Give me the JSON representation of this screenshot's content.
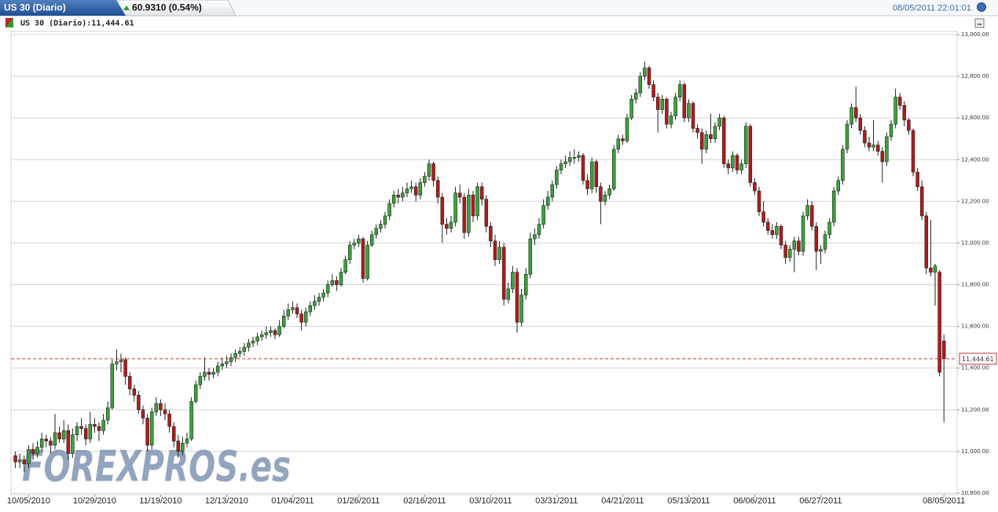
{
  "chart_data": {
    "type": "candlestick",
    "title": "US 30 (Diario)",
    "change": "60.9310 (0.54%)",
    "timestamp": "08/05/2011 22:01:01",
    "legend_label": "US 30 (Diario):11,444.61",
    "watermark": "FOREXPROS.es",
    "last_price": {
      "value": 11444.61,
      "label": "11,444.61"
    },
    "up_color": "#3aa33a",
    "down_color": "#b01c1c",
    "grid": true,
    "ylim": [
      10800,
      13000
    ],
    "yticks": [
      {
        "value": 10800,
        "label": "10,800.00"
      },
      {
        "value": 11000,
        "label": "11,000.00"
      },
      {
        "value": 11200,
        "label": "11,200.00"
      },
      {
        "value": 11400,
        "label": "11,400.00"
      },
      {
        "value": 11600,
        "label": "11,600.00"
      },
      {
        "value": 11800,
        "label": "11,800.00"
      },
      {
        "value": 12000,
        "label": "12,000.00"
      },
      {
        "value": 12200,
        "label": "12,200.00"
      },
      {
        "value": 12400,
        "label": "12,400.00"
      },
      {
        "value": 12600,
        "label": "12,600.00"
      },
      {
        "value": 12800,
        "label": "12,800.00"
      },
      {
        "value": 13000,
        "label": "13,000.00"
      }
    ],
    "xlim": [
      -1,
      214
    ],
    "xticks": [
      {
        "value": 3,
        "label": "10/05/2010"
      },
      {
        "value": 18,
        "label": "10/29/2010"
      },
      {
        "value": 33,
        "label": "11/19/2010"
      },
      {
        "value": 48,
        "label": "12/13/2010"
      },
      {
        "value": 63,
        "label": "01/04/2011"
      },
      {
        "value": 78,
        "label": "01/26/2011"
      },
      {
        "value": 93,
        "label": "02/16/2011"
      },
      {
        "value": 108,
        "label": "03/10/2011"
      },
      {
        "value": 123,
        "label": "03/31/2011"
      },
      {
        "value": 138,
        "label": "04/21/2011"
      },
      {
        "value": 153,
        "label": "05/13/2011"
      },
      {
        "value": 168,
        "label": "06/06/2011"
      },
      {
        "value": 183,
        "label": "06/27/2011"
      },
      {
        "value": 211,
        "label": "08/05/2011"
      }
    ],
    "ohlc": [
      [
        10980,
        11000,
        10920,
        10950
      ],
      [
        10950,
        10990,
        10920,
        10960
      ],
      [
        10960,
        10980,
        10900,
        10940
      ],
      [
        10940,
        11030,
        10920,
        11010
      ],
      [
        11010,
        11040,
        10960,
        10990
      ],
      [
        10990,
        11050,
        10970,
        11020
      ],
      [
        11020,
        11090,
        11000,
        11060
      ],
      [
        11060,
        11080,
        11020,
        11050
      ],
      [
        11050,
        11070,
        10990,
        11030
      ],
      [
        11030,
        11180,
        11010,
        11090
      ],
      [
        11090,
        11120,
        11040,
        11060
      ],
      [
        11060,
        11150,
        11040,
        11100
      ],
      [
        11100,
        11130,
        10960,
        10990
      ],
      [
        10990,
        11110,
        10970,
        11080
      ],
      [
        11080,
        11140,
        11050,
        11120
      ],
      [
        11120,
        11160,
        11080,
        11110
      ],
      [
        11110,
        11130,
        11030,
        11060
      ],
      [
        11060,
        11190,
        11040,
        11130
      ],
      [
        11130,
        11160,
        11090,
        11120
      ],
      [
        11120,
        11140,
        11050,
        11100
      ],
      [
        11100,
        11180,
        11080,
        11150
      ],
      [
        11150,
        11240,
        11130,
        11210
      ],
      [
        11210,
        11440,
        11200,
        11420
      ],
      [
        11420,
        11490,
        11390,
        11430
      ],
      [
        11430,
        11470,
        11380,
        11440
      ],
      [
        11440,
        11450,
        11320,
        11360
      ],
      [
        11360,
        11380,
        11270,
        11300
      ],
      [
        11300,
        11320,
        11240,
        11270
      ],
      [
        11270,
        11290,
        11180,
        11200
      ],
      [
        11200,
        11220,
        11130,
        11160
      ],
      [
        11160,
        11180,
        11000,
        11030
      ],
      [
        11030,
        11210,
        11010,
        11190
      ],
      [
        11190,
        11260,
        11170,
        11230
      ],
      [
        11230,
        11250,
        11170,
        11200
      ],
      [
        11200,
        11230,
        11150,
        11180
      ],
      [
        11180,
        11200,
        11090,
        11120
      ],
      [
        11120,
        11140,
        11020,
        11050
      ],
      [
        11050,
        11080,
        10970,
        11000
      ],
      [
        11000,
        11070,
        10980,
        11040
      ],
      [
        11040,
        11090,
        11020,
        11060
      ],
      [
        11060,
        11260,
        11050,
        11240
      ],
      [
        11240,
        11340,
        11230,
        11320
      ],
      [
        11320,
        11380,
        11300,
        11360
      ],
      [
        11360,
        11450,
        11340,
        11380
      ],
      [
        11380,
        11400,
        11340,
        11370
      ],
      [
        11370,
        11400,
        11350,
        11380
      ],
      [
        11380,
        11430,
        11360,
        11410
      ],
      [
        11410,
        11450,
        11390,
        11420
      ],
      [
        11420,
        11460,
        11400,
        11430
      ],
      [
        11430,
        11470,
        11410,
        11450
      ],
      [
        11450,
        11490,
        11430,
        11470
      ],
      [
        11470,
        11500,
        11450,
        11480
      ],
      [
        11480,
        11520,
        11460,
        11500
      ],
      [
        11500,
        11540,
        11480,
        11520
      ],
      [
        11520,
        11550,
        11500,
        11530
      ],
      [
        11530,
        11570,
        11510,
        11550
      ],
      [
        11550,
        11580,
        11530,
        11560
      ],
      [
        11560,
        11600,
        11540,
        11570
      ],
      [
        11570,
        11600,
        11550,
        11580
      ],
      [
        11580,
        11590,
        11540,
        11560
      ],
      [
        11560,
        11630,
        11550,
        11600
      ],
      [
        11600,
        11680,
        11590,
        11650
      ],
      [
        11650,
        11710,
        11630,
        11680
      ],
      [
        11680,
        11720,
        11660,
        11690
      ],
      [
        11690,
        11710,
        11640,
        11660
      ],
      [
        11660,
        11680,
        11580,
        11620
      ],
      [
        11620,
        11690,
        11600,
        11670
      ],
      [
        11670,
        11720,
        11650,
        11700
      ],
      [
        11700,
        11750,
        11680,
        11720
      ],
      [
        11720,
        11760,
        11700,
        11740
      ],
      [
        11740,
        11780,
        11720,
        11760
      ],
      [
        11760,
        11820,
        11740,
        11800
      ],
      [
        11800,
        11850,
        11790,
        11820
      ],
      [
        11820,
        11840,
        11770,
        11800
      ],
      [
        11800,
        11880,
        11790,
        11860
      ],
      [
        11860,
        11940,
        11850,
        11920
      ],
      [
        11920,
        12010,
        11900,
        11990
      ],
      [
        11990,
        12020,
        11970,
        12000
      ],
      [
        12000,
        12040,
        11980,
        12020
      ],
      [
        12020,
        12030,
        11810,
        11830
      ],
      [
        11830,
        12010,
        11820,
        11990
      ],
      [
        11990,
        12060,
        11980,
        12040
      ],
      [
        12040,
        12090,
        12020,
        12070
      ],
      [
        12070,
        12110,
        12050,
        12090
      ],
      [
        12090,
        12150,
        12070,
        12130
      ],
      [
        12130,
        12210,
        12110,
        12190
      ],
      [
        12190,
        12250,
        12170,
        12230
      ],
      [
        12230,
        12260,
        12190,
        12220
      ],
      [
        12220,
        12270,
        12200,
        12240
      ],
      [
        12240,
        12290,
        12220,
        12260
      ],
      [
        12260,
        12300,
        12240,
        12270
      ],
      [
        12270,
        12290,
        12200,
        12230
      ],
      [
        12230,
        12310,
        12210,
        12290
      ],
      [
        12290,
        12340,
        12270,
        12320
      ],
      [
        12320,
        12400,
        12300,
        12380
      ],
      [
        12380,
        12390,
        12270,
        12300
      ],
      [
        12300,
        12320,
        12190,
        12220
      ],
      [
        12220,
        12240,
        12000,
        12090
      ],
      [
        12090,
        12120,
        12040,
        12070
      ],
      [
        12070,
        12130,
        12050,
        12100
      ],
      [
        12100,
        12270,
        12080,
        12240
      ],
      [
        12240,
        12280,
        12190,
        12220
      ],
      [
        12220,
        12240,
        12020,
        12050
      ],
      [
        12050,
        12260,
        12030,
        12230
      ],
      [
        12230,
        12250,
        12100,
        12130
      ],
      [
        12130,
        12290,
        12110,
        12270
      ],
      [
        12270,
        12290,
        12180,
        12210
      ],
      [
        12210,
        12230,
        12050,
        12080
      ],
      [
        12080,
        12100,
        11980,
        12010
      ],
      [
        12010,
        12040,
        11890,
        11920
      ],
      [
        11920,
        12010,
        11900,
        11980
      ],
      [
        11980,
        12000,
        11700,
        11730
      ],
      [
        11730,
        11810,
        11710,
        11780
      ],
      [
        11780,
        11890,
        11760,
        11860
      ],
      [
        11860,
        11880,
        11570,
        11620
      ],
      [
        11620,
        11780,
        11600,
        11750
      ],
      [
        11750,
        11880,
        11730,
        11850
      ],
      [
        11850,
        12050,
        11830,
        12020
      ],
      [
        12020,
        12070,
        11990,
        12040
      ],
      [
        12040,
        12120,
        12020,
        12090
      ],
      [
        12090,
        12210,
        12070,
        12180
      ],
      [
        12180,
        12250,
        12160,
        12220
      ],
      [
        12220,
        12300,
        12200,
        12280
      ],
      [
        12280,
        12370,
        12260,
        12350
      ],
      [
        12350,
        12400,
        12330,
        12380
      ],
      [
        12380,
        12420,
        12360,
        12390
      ],
      [
        12390,
        12440,
        12370,
        12410
      ],
      [
        12410,
        12450,
        12380,
        12410
      ],
      [
        12410,
        12440,
        12390,
        12420
      ],
      [
        12420,
        12430,
        12280,
        12300
      ],
      [
        12300,
        12330,
        12230,
        12260
      ],
      [
        12260,
        12410,
        12240,
        12390
      ],
      [
        12390,
        12400,
        12240,
        12270
      ],
      [
        12270,
        12290,
        12090,
        12200
      ],
      [
        12200,
        12250,
        12180,
        12230
      ],
      [
        12230,
        12280,
        12210,
        12260
      ],
      [
        12260,
        12470,
        12250,
        12450
      ],
      [
        12450,
        12520,
        12430,
        12500
      ],
      [
        12500,
        12520,
        12470,
        12490
      ],
      [
        12490,
        12620,
        12480,
        12600
      ],
      [
        12600,
        12710,
        12590,
        12690
      ],
      [
        12690,
        12740,
        12670,
        12720
      ],
      [
        12720,
        12820,
        12700,
        12800
      ],
      [
        12800,
        12870,
        12780,
        12840
      ],
      [
        12840,
        12850,
        12740,
        12760
      ],
      [
        12760,
        12780,
        12680,
        12700
      ],
      [
        12700,
        12720,
        12530,
        12640
      ],
      [
        12640,
        12710,
        12620,
        12690
      ],
      [
        12690,
        12700,
        12550,
        12570
      ],
      [
        12570,
        12630,
        12550,
        12610
      ],
      [
        12610,
        12720,
        12590,
        12700
      ],
      [
        12700,
        12780,
        12680,
        12760
      ],
      [
        12760,
        12770,
        12580,
        12600
      ],
      [
        12600,
        12690,
        12580,
        12670
      ],
      [
        12670,
        12680,
        12530,
        12550
      ],
      [
        12550,
        12570,
        12500,
        12530
      ],
      [
        12530,
        12550,
        12380,
        12450
      ],
      [
        12450,
        12540,
        12430,
        12520
      ],
      [
        12520,
        12620,
        12480,
        12500
      ],
      [
        12500,
        12580,
        12480,
        12560
      ],
      [
        12560,
        12620,
        12540,
        12600
      ],
      [
        12600,
        12610,
        12360,
        12380
      ],
      [
        12380,
        12400,
        12330,
        12360
      ],
      [
        12360,
        12440,
        12340,
        12420
      ],
      [
        12420,
        12430,
        12330,
        12350
      ],
      [
        12350,
        12400,
        12330,
        12380
      ],
      [
        12380,
        12580,
        12360,
        12560
      ],
      [
        12560,
        12570,
        12270,
        12290
      ],
      [
        12290,
        12310,
        12230,
        12250
      ],
      [
        12250,
        12270,
        12130,
        12150
      ],
      [
        12150,
        12200,
        12080,
        12100
      ],
      [
        12100,
        12120,
        12040,
        12060
      ],
      [
        12060,
        12090,
        12020,
        12040
      ],
      [
        12040,
        12100,
        12020,
        12080
      ],
      [
        12080,
        12090,
        11970,
        11990
      ],
      [
        11990,
        12010,
        11900,
        11930
      ],
      [
        11930,
        11990,
        11910,
        11970
      ],
      [
        11970,
        12030,
        11860,
        12010
      ],
      [
        12010,
        12030,
        11940,
        11960
      ],
      [
        11960,
        12150,
        11940,
        12130
      ],
      [
        12130,
        12210,
        12110,
        12180
      ],
      [
        12180,
        12200,
        12060,
        12080
      ],
      [
        12080,
        12100,
        11870,
        11960
      ],
      [
        11960,
        11990,
        11900,
        11970
      ],
      [
        11970,
        12060,
        11950,
        12040
      ],
      [
        12040,
        12120,
        12020,
        12100
      ],
      [
        12100,
        12270,
        12080,
        12250
      ],
      [
        12250,
        12320,
        12230,
        12300
      ],
      [
        12300,
        12470,
        12280,
        12450
      ],
      [
        12450,
        12590,
        12430,
        12570
      ],
      [
        12570,
        12670,
        12550,
        12650
      ],
      [
        12650,
        12750,
        12580,
        12600
      ],
      [
        12600,
        12620,
        12520,
        12540
      ],
      [
        12540,
        12560,
        12460,
        12480
      ],
      [
        12480,
        12510,
        12440,
        12460
      ],
      [
        12460,
        12590,
        12440,
        12470
      ],
      [
        12470,
        12490,
        12420,
        12440
      ],
      [
        12440,
        12460,
        12290,
        12390
      ],
      [
        12390,
        12530,
        12370,
        12510
      ],
      [
        12510,
        12590,
        12490,
        12570
      ],
      [
        12570,
        12740,
        12550,
        12700
      ],
      [
        12700,
        12720,
        12640,
        12660
      ],
      [
        12660,
        12680,
        12560,
        12590
      ],
      [
        12590,
        12600,
        12520,
        12540
      ],
      [
        12540,
        12550,
        12320,
        12340
      ],
      [
        12340,
        12360,
        12250,
        12270
      ],
      [
        12270,
        12300,
        12110,
        12130
      ],
      [
        12130,
        12150,
        11850,
        11880
      ],
      [
        11880,
        12110,
        11840,
        11860
      ],
      [
        11860,
        11900,
        11700,
        11890
      ],
      [
        11860,
        11870,
        11360,
        11380
      ],
      [
        11530,
        11560,
        11140,
        11444.61
      ]
    ]
  }
}
